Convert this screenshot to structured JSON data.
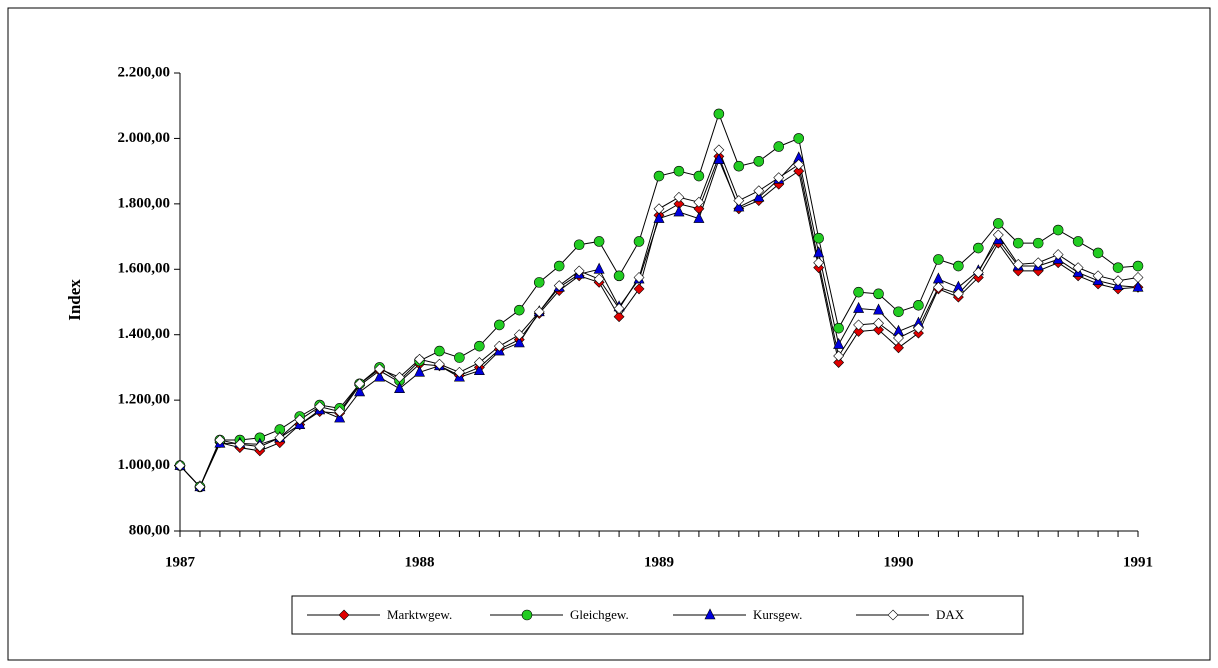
{
  "chart_data": {
    "type": "line",
    "ylabel": "Index",
    "categories": [
      "1987",
      null,
      null,
      null,
      null,
      null,
      null,
      null,
      null,
      null,
      null,
      null,
      "1988",
      null,
      null,
      null,
      null,
      null,
      null,
      null,
      null,
      null,
      null,
      null,
      "1989",
      null,
      null,
      null,
      null,
      null,
      null,
      null,
      null,
      null,
      null,
      null,
      "1990",
      null,
      null,
      null,
      null,
      null,
      null,
      null,
      null,
      null,
      null,
      null,
      "1991"
    ],
    "ylim": [
      800,
      2200
    ],
    "yticks": [
      {
        "value": 800,
        "label": "800,00"
      },
      {
        "value": 1000,
        "label": "1.000,00"
      },
      {
        "value": 1200,
        "label": "1.200,00"
      },
      {
        "value": 1400,
        "label": "1.400,00"
      },
      {
        "value": 1600,
        "label": "1.600,00"
      },
      {
        "value": 1800,
        "label": "1.800,00"
      },
      {
        "value": 2000,
        "label": "2.000,00"
      },
      {
        "value": 2200,
        "label": "2.200,00"
      }
    ],
    "line_color": "#000000",
    "legend": "bottom",
    "series": [
      {
        "name": "Marktwgew.",
        "color": "#e00000",
        "marker": "diamond",
        "values": [
          1000,
          935,
          1070,
          1055,
          1045,
          1070,
          1125,
          1165,
          1160,
          1245,
          1290,
          1255,
          1310,
          1305,
          1275,
          1300,
          1355,
          1385,
          1465,
          1535,
          1580,
          1560,
          1455,
          1540,
          1765,
          1800,
          1785,
          1945,
          1785,
          1810,
          1860,
          1900,
          1605,
          1315,
          1410,
          1415,
          1360,
          1405,
          1540,
          1515,
          1575,
          1680,
          1595,
          1595,
          1620,
          1580,
          1555,
          1540,
          1545
        ]
      },
      {
        "name": "Gleichgew.",
        "color": "#22cc22",
        "marker": "circle",
        "values": [
          1000,
          935,
          1078,
          1078,
          1085,
          1110,
          1150,
          1185,
          1175,
          1250,
          1300,
          1260,
          1320,
          1350,
          1330,
          1365,
          1430,
          1475,
          1560,
          1610,
          1675,
          1685,
          1580,
          1685,
          1885,
          1900,
          1885,
          2075,
          1915,
          1930,
          1975,
          2000,
          1695,
          1420,
          1530,
          1525,
          1470,
          1490,
          1630,
          1610,
          1665,
          1740,
          1680,
          1680,
          1720,
          1685,
          1650,
          1605,
          1610
        ]
      },
      {
        "name": "Kursgew.",
        "color": "#0000dd",
        "marker": "triangle",
        "values": [
          1000,
          935,
          1068,
          1068,
          1065,
          1085,
          1125,
          1170,
          1145,
          1225,
          1270,
          1235,
          1285,
          1305,
          1270,
          1290,
          1350,
          1375,
          1470,
          1545,
          1585,
          1600,
          1485,
          1570,
          1755,
          1775,
          1755,
          1935,
          1790,
          1820,
          1875,
          1940,
          1650,
          1370,
          1480,
          1475,
          1410,
          1435,
          1570,
          1545,
          1595,
          1690,
          1610,
          1610,
          1630,
          1590,
          1565,
          1550,
          1545
        ]
      },
      {
        "name": "DAX",
        "color": "#ffffff",
        "marker": "diamond",
        "values": [
          1000,
          935,
          1078,
          1065,
          1058,
          1085,
          1140,
          1180,
          1165,
          1250,
          1295,
          1270,
          1325,
          1310,
          1285,
          1315,
          1365,
          1400,
          1470,
          1550,
          1595,
          1570,
          1480,
          1575,
          1785,
          1820,
          1805,
          1965,
          1810,
          1840,
          1880,
          1920,
          1620,
          1335,
          1430,
          1435,
          1390,
          1420,
          1545,
          1525,
          1590,
          1705,
          1615,
          1620,
          1645,
          1605,
          1580,
          1565,
          1575
        ]
      }
    ]
  }
}
